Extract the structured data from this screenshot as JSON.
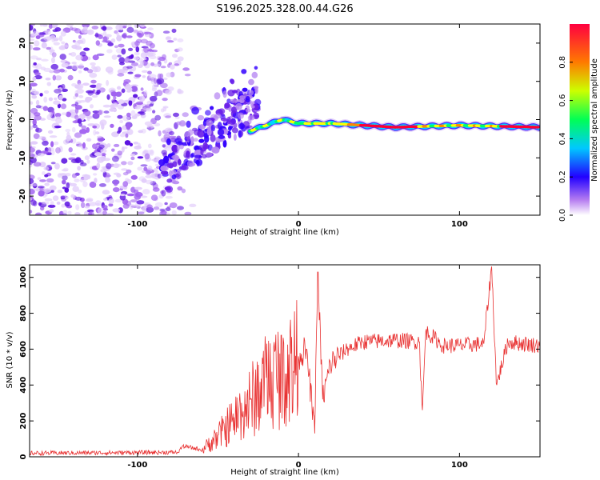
{
  "chart_data": [
    {
      "type": "heatmap",
      "title": "S196.2025.328.00.44.G26",
      "xlabel": "Height of straight line (km)",
      "ylabel": "Frequency (Hz)",
      "xlim": [
        -167,
        150
      ],
      "ylim": [
        -25,
        25
      ],
      "x_ticks": [
        -100,
        0,
        100
      ],
      "y_ticks": [
        -20,
        -10,
        0,
        10,
        20
      ],
      "colorbar": {
        "label": "Normalized spectral amplitude",
        "range": [
          0,
          1
        ],
        "ticks": [
          0.0,
          0.2,
          0.4,
          0.6,
          0.8
        ],
        "tick_labels": [
          "0.0",
          "0.2",
          "0.4",
          "0.6",
          "0.8"
        ],
        "colormap": [
          "#f2e6ff",
          "#8a2be2",
          "#3300ff",
          "#00d4ff",
          "#00ff66",
          "#ffff00",
          "#ff8800",
          "#ff0033"
        ]
      },
      "features": {
        "noise_region_x": [
          -167,
          -65
        ],
        "rising_track": [
          [
            -85,
            -16
          ],
          [
            -70,
            -9
          ],
          [
            -55,
            -5
          ],
          [
            -40,
            0
          ],
          [
            -25,
            4
          ]
        ],
        "stable_track": [
          [
            -30,
            -3
          ],
          [
            -10,
            0
          ],
          [
            0,
            -1
          ],
          [
            20,
            -1
          ],
          [
            60,
            -2
          ],
          [
            100,
            -1.5
          ],
          [
            150,
            -2
          ]
        ]
      }
    },
    {
      "type": "line",
      "xlabel": "Height of straight line (km)",
      "ylabel": "SNR (10 * v/v)",
      "xlim": [
        -167,
        150
      ],
      "ylim": [
        0,
        1070
      ],
      "x_ticks": [
        -100,
        0,
        100
      ],
      "y_ticks": [
        0,
        200,
        400,
        600,
        800,
        1000
      ],
      "series": [
        {
          "name": "SNR",
          "color": "#e83030",
          "points": [
            [
              -167,
              20
            ],
            [
              -75,
              25
            ],
            [
              -72,
              60
            ],
            [
              -60,
              40
            ],
            [
              -50,
              120
            ],
            [
              -40,
              220
            ],
            [
              -30,
              320
            ],
            [
              -20,
              440
            ],
            [
              -10,
              500
            ],
            [
              0,
              560
            ],
            [
              5,
              600
            ],
            [
              10,
              130
            ],
            [
              12,
              1030
            ],
            [
              15,
              320
            ],
            [
              20,
              520
            ],
            [
              30,
              600
            ],
            [
              40,
              640
            ],
            [
              60,
              650
            ],
            [
              75,
              640
            ],
            [
              77,
              260
            ],
            [
              79,
              700
            ],
            [
              90,
              620
            ],
            [
              100,
              620
            ],
            [
              115,
              630
            ],
            [
              120,
              1060
            ],
            [
              123,
              400
            ],
            [
              130,
              640
            ],
            [
              150,
              620
            ]
          ]
        }
      ]
    }
  ]
}
